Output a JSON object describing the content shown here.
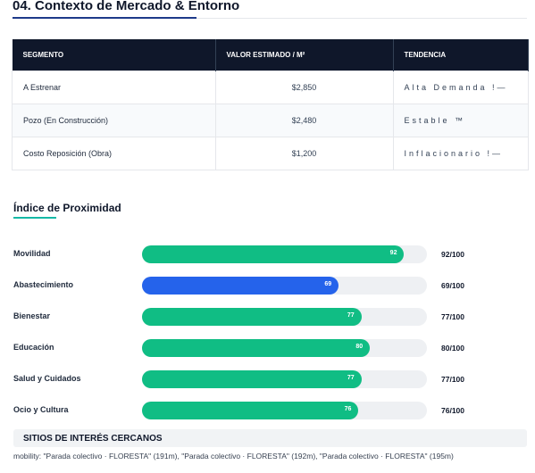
{
  "header": {
    "title": "04. Contexto de Mercado & Entorno"
  },
  "table": {
    "columns": [
      "SEGMENTO",
      "VALOR ESTIMADO / M²",
      "TENDENCIA"
    ],
    "rows": [
      [
        "A Estrenar",
        "$2,850",
        "Alta Demanda !—"
      ],
      [
        "Pozo (En Construcción)",
        "$2,480",
        "Estable ™"
      ],
      [
        "Costo Reposición (Obra)",
        "$1,200",
        "Inflacionario !—"
      ]
    ]
  },
  "proximity": {
    "title": "Índice de Proximidad",
    "scale_max": 100,
    "items": [
      {
        "name": "Movilidad",
        "value": 92,
        "label": "92/100",
        "color": "#10bd84"
      },
      {
        "name": "Abastecimiento",
        "value": 69,
        "label": "69/100",
        "color": "#2563eb"
      },
      {
        "name": "Bienestar",
        "value": 77,
        "label": "77/100",
        "color": "#10bd84"
      },
      {
        "name": "Educación",
        "value": 80,
        "label": "80/100",
        "color": "#10bd84"
      },
      {
        "name": "Salud y Cuidados",
        "value": 77,
        "label": "77/100",
        "color": "#10bd84"
      },
      {
        "name": "Ocio y Cultura",
        "value": 76,
        "label": "76/100",
        "color": "#10bd84"
      }
    ]
  },
  "sites": {
    "title": "SITIOS DE INTERÉS CERCANOS",
    "text": "mobility: \"Parada colectivo · FLORESTA\" (191m), \"Parada colectivo · FLORESTA\" (192m), \"Parada colectivo · FLORESTA\" (195m)"
  }
}
